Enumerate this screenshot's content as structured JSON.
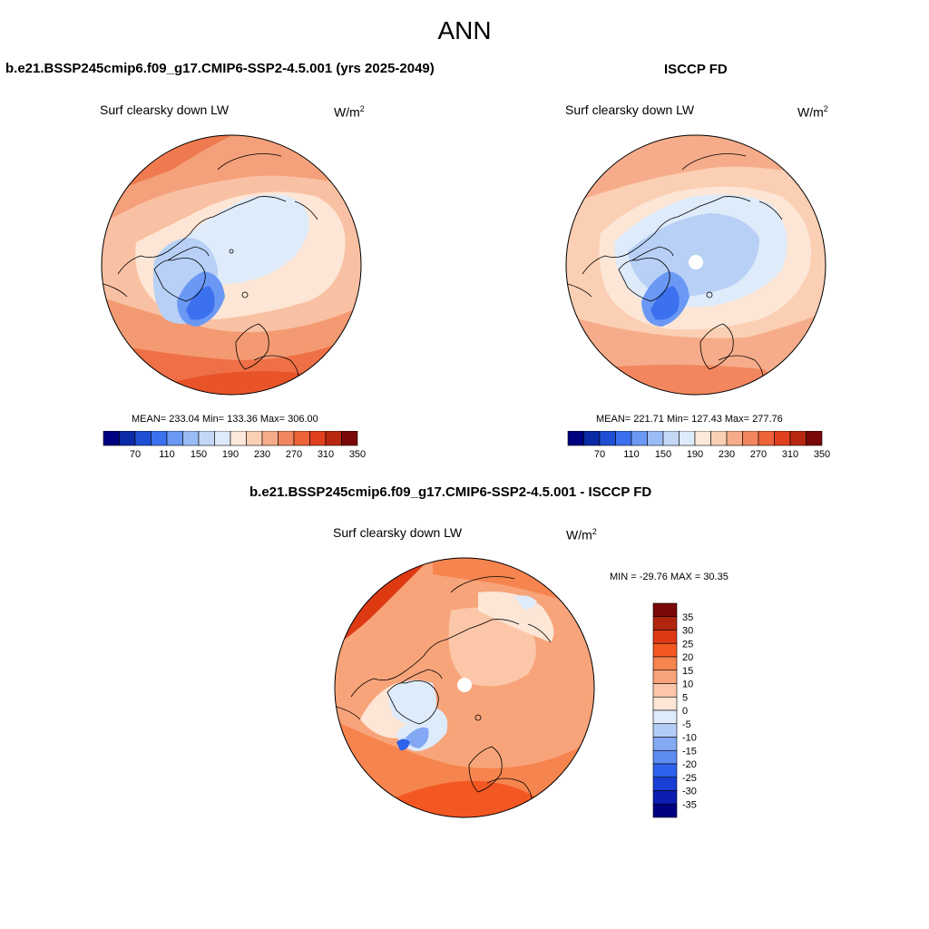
{
  "title": "ANN",
  "panels": {
    "model": {
      "title": "b.e21.BSSP245cmip6.f09_g17.CMIP6-SSP2-4.5.001 (yrs 2025-2049)",
      "variable": "Surf clearsky down LW",
      "units_base": "W/m",
      "units_sup": "2",
      "stats": "MEAN= 233.04   Min= 133.36   Max= 306.00"
    },
    "obs": {
      "title": "ISCCP FD",
      "variable": "Surf clearsky down LW",
      "units_base": "W/m",
      "units_sup": "2",
      "stats": "MEAN= 221.71   Min= 127.43   Max= 277.76"
    },
    "diff": {
      "title": "b.e21.BSSP245cmip6.f09_g17.CMIP6-SSP2-4.5.001 - ISCCP FD",
      "variable": "Surf clearsky down LW",
      "units_base": "W/m",
      "units_sup": "2",
      "stats": "MIN = -29.76 MAX =  30.35"
    }
  },
  "colorbars": {
    "abs": {
      "colors": [
        "#000080",
        "#0a2aa6",
        "#1f4fd4",
        "#3b71ee",
        "#6a98f4",
        "#9abcf6",
        "#c4d8f6",
        "#deebfa",
        "#fde9dc",
        "#fbcfb4",
        "#f6ac8a",
        "#f2865f",
        "#ee6238",
        "#e0401e",
        "#b82810",
        "#7a0808"
      ],
      "labels": [
        "70",
        "110",
        "150",
        "190",
        "230",
        "270",
        "310",
        "350"
      ]
    },
    "diff": {
      "colors": [
        "#7a0808",
        "#b02510",
        "#dd3a14",
        "#f45822",
        "#f6844e",
        "#f8a47a",
        "#fbc7a8",
        "#fde6d6",
        "#deebfa",
        "#b4cdf7",
        "#84a9f4",
        "#5e8cf1",
        "#2e62ec",
        "#1a3fd6",
        "#0a1fb0",
        "#000080"
      ],
      "labels": [
        "35",
        "30",
        "25",
        "20",
        "15",
        "10",
        "5",
        "0",
        "-5",
        "-10",
        "-15",
        "-20",
        "-25",
        "-30",
        "-35"
      ]
    }
  }
}
